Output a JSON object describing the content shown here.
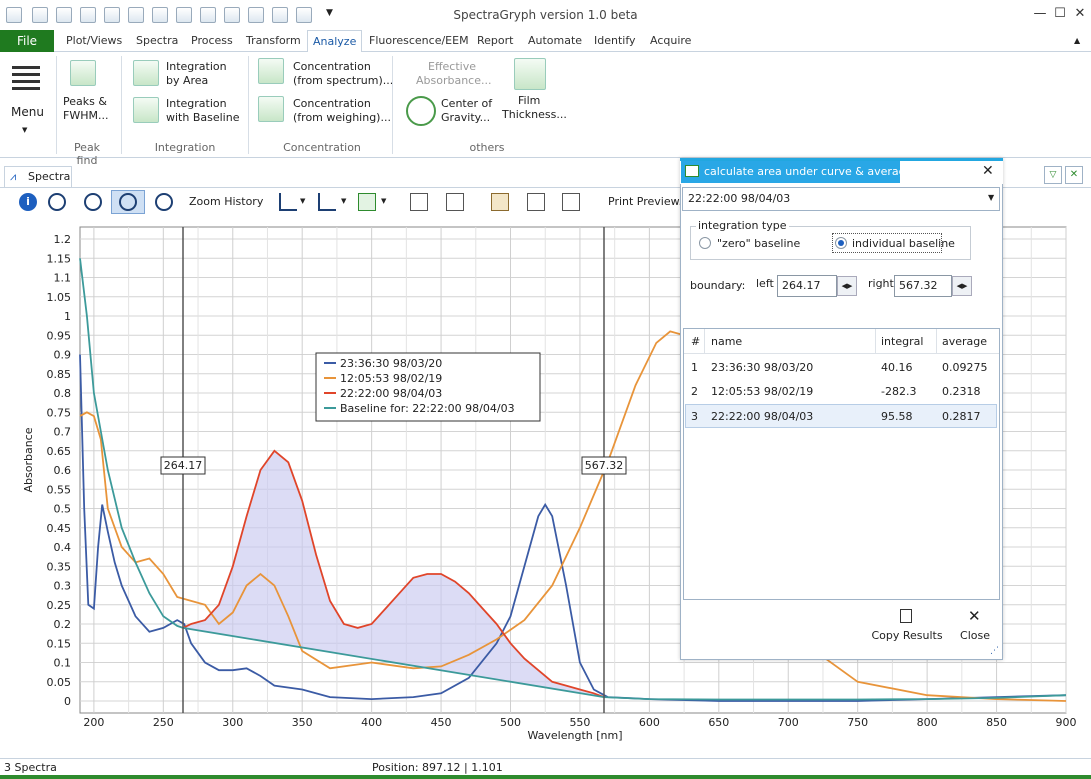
{
  "app": {
    "title": "SpectraGryph version 1.0 beta"
  },
  "ribbon": {
    "file_label": "File",
    "tabs": [
      "Plot/Views",
      "Spectra",
      "Process",
      "Transform",
      "Analyze",
      "Fluorescence/EEM",
      "Report",
      "Automate",
      "Identify",
      "Acquire"
    ],
    "active_tab": "Analyze",
    "menu_label": "Menu",
    "peaks_label_1": "Peaks &",
    "peaks_label_2": "FWHM...",
    "integration_area_1": "Integration",
    "integration_area_2": "by Area",
    "integration_baseline_1": "Integration",
    "integration_baseline_2": "with Baseline",
    "conc_spectrum_1": "Concentration",
    "conc_spectrum_2": "(from spectrum)...",
    "conc_weighing_1": "Concentration",
    "conc_weighing_2": "(from weighing)...",
    "effective_abs_1": "Effective",
    "effective_abs_2": "Absorbance...",
    "center_gravity_1": "Center of",
    "center_gravity_2": "Gravity...",
    "film_1": "Film",
    "film_2": "Thickness...",
    "groups": {
      "peak_find": "Peak find",
      "integration": "Integration",
      "concentration": "Concentration",
      "others": "others"
    }
  },
  "document": {
    "tab_label": "Spectra",
    "zoom_history": "Zoom History",
    "print_preview": "Print Preview..."
  },
  "chart_data": {
    "type": "line",
    "xlabel": "Wavelength [nm]",
    "ylabel": "Absorbance",
    "xlim": [
      190,
      900
    ],
    "ylim": [
      0,
      1.2
    ],
    "x_ticks": [
      200,
      250,
      300,
      350,
      400,
      450,
      500,
      550,
      600,
      650,
      700,
      750,
      800,
      850,
      900
    ],
    "y_ticks": [
      0,
      0.05,
      0.1,
      0.15,
      0.2,
      0.25,
      0.3,
      0.35,
      0.4,
      0.45,
      0.5,
      0.55,
      0.6,
      0.65,
      0.7,
      0.75,
      0.8,
      0.85,
      0.9,
      0.95,
      1,
      1.05,
      1.1,
      1.15,
      1.2
    ],
    "y_tick_labels": [
      "0",
      "0.05",
      "0.1",
      "0.15",
      "0.2",
      "0.25",
      "0.3",
      "0.35",
      "0.4",
      "0.45",
      "0.5",
      "0.55",
      "0.6",
      "0.65",
      "0.7",
      "0.75",
      "0.8",
      "0.85",
      "0.9",
      "0.95",
      "1",
      "1.05",
      "1.1",
      "1.15",
      "1.2"
    ],
    "grid": true,
    "legend_position": "top-center",
    "boundary_left": 264.17,
    "boundary_right": 567.32,
    "boundary_left_label": "264.17",
    "boundary_right_label": "567.32",
    "series": [
      {
        "name": "23:36:30    98/03/20",
        "color": "#3b5ba5",
        "x": [
          190,
          193,
          196,
          200,
          203,
          206,
          210,
          215,
          220,
          230,
          240,
          250,
          255,
          260,
          265,
          270,
          280,
          290,
          300,
          310,
          320,
          330,
          350,
          370,
          400,
          430,
          450,
          470,
          490,
          500,
          510,
          520,
          525,
          530,
          540,
          550,
          560,
          570,
          600,
          650,
          700,
          750,
          800,
          850,
          900
        ],
        "y": [
          0.9,
          0.5,
          0.25,
          0.24,
          0.4,
          0.51,
          0.44,
          0.36,
          0.3,
          0.22,
          0.18,
          0.19,
          0.2,
          0.21,
          0.2,
          0.15,
          0.1,
          0.08,
          0.08,
          0.085,
          0.065,
          0.04,
          0.03,
          0.01,
          0.005,
          0.01,
          0.02,
          0.06,
          0.15,
          0.22,
          0.35,
          0.48,
          0.51,
          0.48,
          0.3,
          0.1,
          0.03,
          0.01,
          0.005,
          0.0,
          0.0,
          0.0,
          0.005,
          0.01,
          0.015
        ]
      },
      {
        "name": "12:05:53    98/02/19",
        "color": "#e8943a",
        "x": [
          190,
          195,
          200,
          205,
          210,
          220,
          230,
          240,
          250,
          260,
          270,
          280,
          290,
          300,
          310,
          320,
          330,
          340,
          350,
          370,
          400,
          430,
          450,
          470,
          490,
          510,
          530,
          550,
          570,
          590,
          605,
          615,
          625,
          640,
          660,
          680,
          700,
          750,
          800,
          850,
          900
        ],
        "y": [
          0.74,
          0.75,
          0.74,
          0.68,
          0.5,
          0.4,
          0.36,
          0.37,
          0.33,
          0.27,
          0.26,
          0.25,
          0.2,
          0.23,
          0.3,
          0.33,
          0.3,
          0.22,
          0.13,
          0.085,
          0.1,
          0.085,
          0.09,
          0.12,
          0.16,
          0.21,
          0.3,
          0.45,
          0.62,
          0.82,
          0.93,
          0.96,
          0.95,
          0.85,
          0.6,
          0.35,
          0.18,
          0.05,
          0.015,
          0.005,
          0.0
        ]
      },
      {
        "name": "22:22:00    98/04/03",
        "color": "#e0452a",
        "x": [
          264.17,
          270,
          280,
          290,
          300,
          310,
          320,
          330,
          340,
          350,
          360,
          370,
          380,
          390,
          400,
          410,
          420,
          430,
          440,
          450,
          460,
          470,
          480,
          490,
          500,
          510,
          520,
          530,
          540,
          550,
          560,
          567.32
        ],
        "y": [
          0.19,
          0.2,
          0.21,
          0.25,
          0.35,
          0.48,
          0.6,
          0.65,
          0.62,
          0.52,
          0.38,
          0.26,
          0.2,
          0.19,
          0.2,
          0.24,
          0.28,
          0.32,
          0.33,
          0.33,
          0.31,
          0.28,
          0.24,
          0.2,
          0.15,
          0.11,
          0.08,
          0.05,
          0.04,
          0.03,
          0.02,
          0.01
        ]
      },
      {
        "name": "Baseline for: 22:22:00      98/04/03",
        "color": "#3c9a9a",
        "x": [
          190,
          195,
          200,
          210,
          220,
          230,
          240,
          250,
          260,
          264.17,
          567.32,
          600,
          650,
          700,
          750,
          800,
          850,
          900
        ],
        "y": [
          1.15,
          1.0,
          0.8,
          0.6,
          0.45,
          0.36,
          0.28,
          0.22,
          0.195,
          0.19,
          0.01,
          0.005,
          0.004,
          0.004,
          0.004,
          0.005,
          0.008,
          0.015
        ]
      }
    ]
  },
  "panel": {
    "title": "calculate area under curve & average",
    "spectrum_select": "22:22:00    98/04/03",
    "integration_type_label": "integration type",
    "zero_baseline": "\"zero\" baseline",
    "individual_baseline": "individual baseline",
    "boundary_label": "boundary:",
    "left_label": "left",
    "left_value": "264.17",
    "right_label": "right",
    "right_value": "567.32",
    "table": {
      "headers": [
        "#",
        "name",
        "integral",
        "average"
      ],
      "rows": [
        [
          "1",
          "23:36:30    98/03/20",
          "40.16",
          "0.09275"
        ],
        [
          "2",
          "12:05:53    98/02/19",
          "-282.3",
          "0.2318"
        ],
        [
          "3",
          "22:22:00    98/04/03",
          "95.58",
          "0.2817"
        ]
      ]
    },
    "copy_results": "Copy Results",
    "close": "Close"
  },
  "status": {
    "spectra_count": "3 Spectra",
    "position": "Position: 897.12  |  1.101"
  }
}
